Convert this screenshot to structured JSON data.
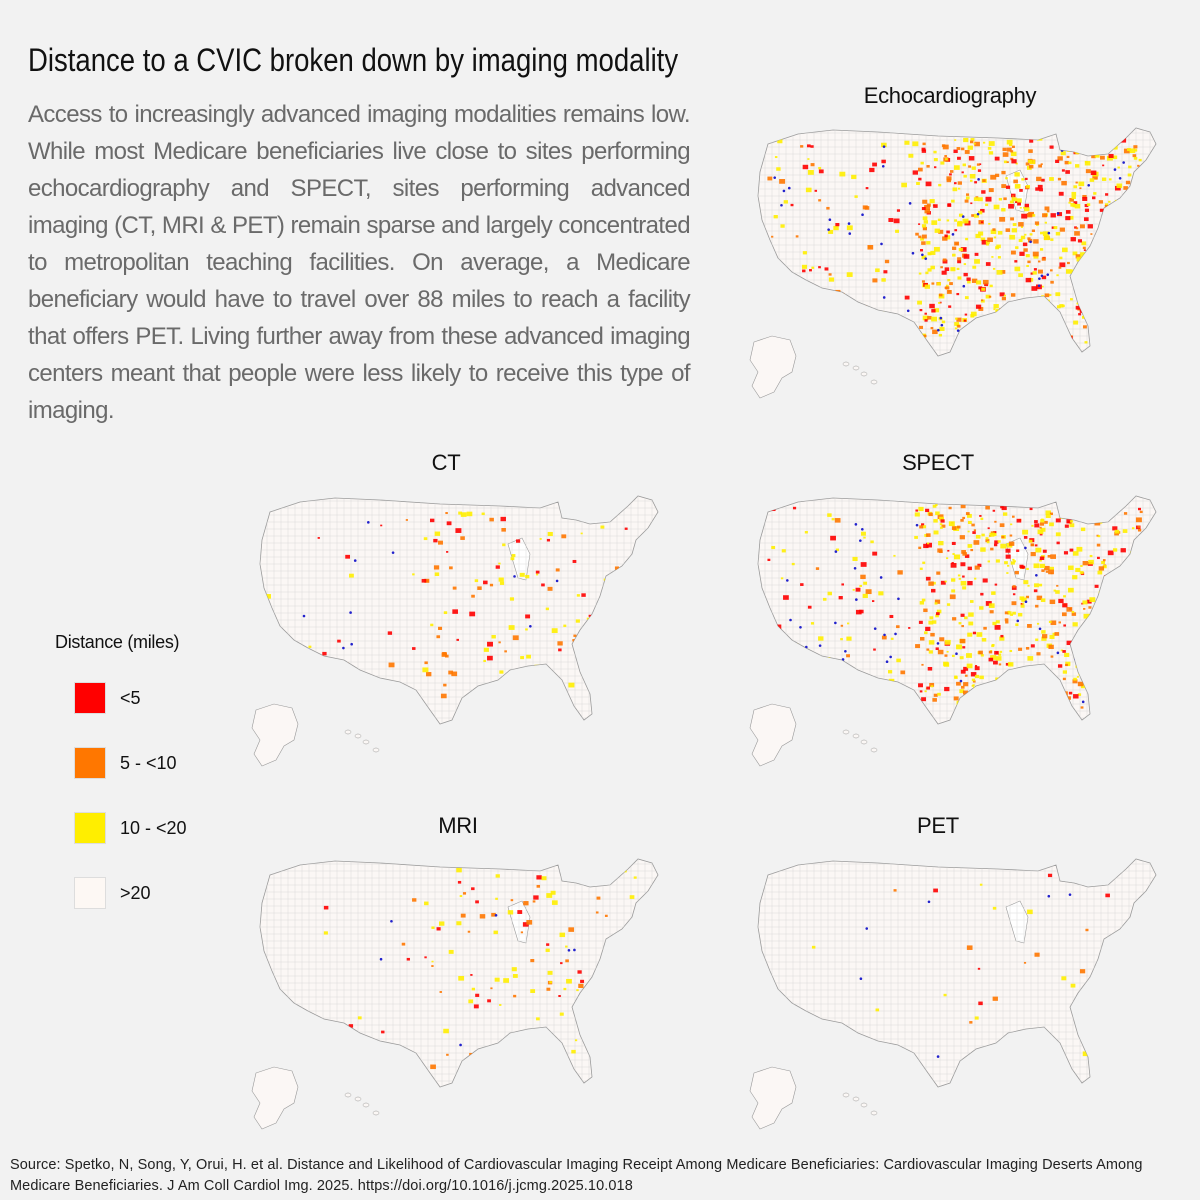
{
  "title": "Distance to a CVIC broken down by imaging modality",
  "intro": "Access to increasingly advanced imaging modalities remains low. While most Medicare beneficiaries live close to sites performing echocardiography and SPECT, sites performing advanced imaging (CT, MRI & PET) remain sparse and largely concentrated to metropolitan teaching facilities. On average, a Medicare beneficiary would have to travel over 88 miles to reach a facility that offers PET. Living further away from these advanced imaging centers meant that people were less likely to receive this type of imaging.",
  "maps": [
    {
      "id": "echo",
      "title": "Echocardiography",
      "density": 0.85
    },
    {
      "id": "ct",
      "title": "CT",
      "density": 0.18
    },
    {
      "id": "spect",
      "title": "SPECT",
      "density": 0.75
    },
    {
      "id": "mri",
      "title": "MRI",
      "density": 0.14
    },
    {
      "id": "pet",
      "title": "PET",
      "density": 0.04
    }
  ],
  "legend": {
    "title": "Distance (miles)",
    "items": [
      {
        "label": "<5",
        "color": "#ff0000"
      },
      {
        "label": "5 - <10",
        "color": "#ff7700"
      },
      {
        "label": "10 - <20",
        "color": "#ffee00"
      },
      {
        "label": ">20",
        "color": "#fdf8f4"
      }
    ]
  },
  "source": "Source: Spetko, N, Song, Y, Orui, H. et al. Distance and Likelihood of Cardiovascular Imaging Receipt Among Medicare Beneficiaries: Cardiovascular Imaging Deserts Among Medicare Beneficiaries. J Am Coll Cardiol Img. 2025. https://doi.org/10.1016/j.jcmg.2025.10.018"
}
